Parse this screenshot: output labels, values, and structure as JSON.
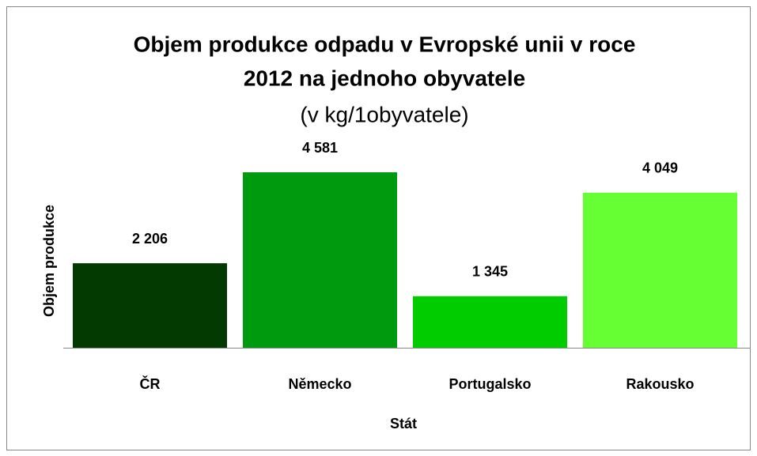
{
  "chart_data": {
    "type": "bar",
    "title": [
      "Objem produkce odpadu v Evropské unii v roce",
      "2012 na jednoho obyvatele"
    ],
    "subtitle": "(v kg/1obyvatele)",
    "x_label": "Stát",
    "y_label": "Objem produkce",
    "categories": [
      "ČR",
      "Německo",
      "Portugalsko",
      "Rakousko"
    ],
    "values": [
      2206,
      4581,
      1345,
      4049
    ],
    "value_labels": [
      "2 206",
      "4 581",
      "1 345",
      "4 049"
    ],
    "colors": [
      "#023a02",
      "#009a0e",
      "#00cc00",
      "#66ff33"
    ]
  }
}
